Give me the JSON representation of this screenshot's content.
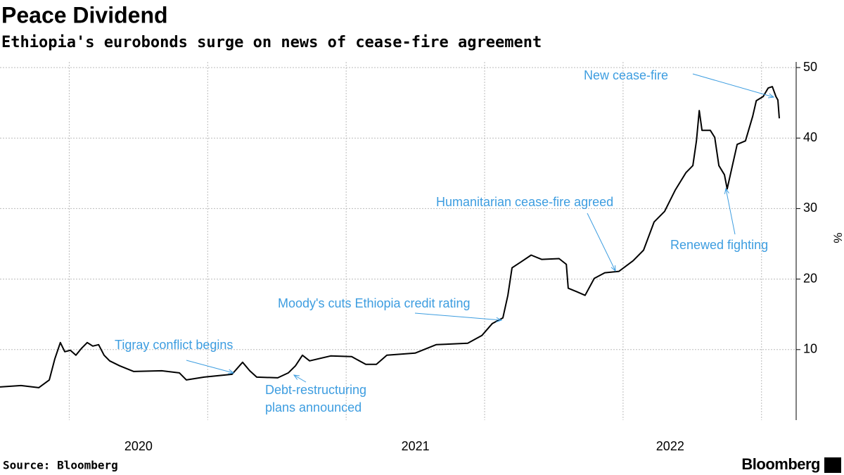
{
  "chart_data": {
    "type": "line",
    "title": "Peace Dividend",
    "subtitle": "Ethiopia's eurobonds surge on news of cease-fire agreement",
    "y_label": "%",
    "source": "Source: Bloomberg",
    "brand": "Bloomberg",
    "color": "#000000",
    "annotation_color": "#3d9de0",
    "x": [
      2020.0,
      2020.076,
      2020.14,
      2020.178,
      2020.198,
      2020.218,
      2020.234,
      2020.254,
      2020.274,
      2020.295,
      2020.315,
      2020.335,
      2020.356,
      2020.376,
      2020.396,
      2020.432,
      2020.483,
      2020.584,
      2020.648,
      2020.673,
      2020.737,
      2020.838,
      2020.876,
      2020.902,
      2020.927,
      2021.003,
      2021.041,
      2021.067,
      2021.092,
      2021.118,
      2021.194,
      2021.27,
      2021.321,
      2021.359,
      2021.397,
      2021.499,
      2021.575,
      2021.689,
      2021.74,
      2021.778,
      2021.816,
      2021.834,
      2021.849,
      2021.88,
      2021.918,
      2021.956,
      2022.019,
      2022.045,
      2022.052,
      2022.083,
      2022.113,
      2022.146,
      2022.184,
      2022.235,
      2022.286,
      2022.324,
      2022.362,
      2022.4,
      2022.438,
      2022.477,
      2022.502,
      2022.515,
      2022.525,
      2022.535,
      2022.565,
      2022.581,
      2022.596,
      2022.616,
      2022.626,
      2022.642,
      2022.662,
      2022.692,
      2022.718,
      2022.731,
      2022.756,
      2022.774,
      2022.789,
      2022.802,
      2022.809,
      2022.814
    ],
    "values": [
      4.7,
      4.9,
      4.6,
      5.7,
      8.7,
      11.0,
      9.7,
      9.9,
      9.2,
      10.2,
      11.0,
      10.5,
      10.7,
      9.2,
      8.4,
      7.7,
      6.9,
      7.0,
      6.7,
      5.7,
      6.1,
      6.5,
      8.2,
      7.0,
      6.1,
      6.0,
      6.7,
      7.7,
      9.2,
      8.4,
      9.1,
      9.0,
      7.9,
      7.9,
      9.2,
      9.5,
      10.7,
      10.9,
      12.0,
      13.7,
      14.5,
      17.7,
      21.6,
      22.4,
      23.4,
      22.8,
      22.9,
      22.1,
      18.7,
      18.2,
      17.7,
      20.1,
      20.9,
      21.1,
      22.6,
      24.1,
      28.1,
      29.6,
      32.6,
      35.1,
      36.1,
      39.6,
      43.9,
      41.1,
      41.1,
      40.1,
      36.1,
      34.8,
      32.8,
      35.6,
      39.1,
      39.6,
      43.1,
      45.3,
      45.9,
      47.1,
      47.3,
      45.9,
      45.4,
      42.8
    ],
    "xlim": [
      2020.0,
      2022.87
    ],
    "xticks": [
      {
        "value": 2020.5,
        "label": "2020"
      },
      {
        "value": 2021.5,
        "label": "2021"
      },
      {
        "value": 2022.42,
        "label": "2022"
      }
    ],
    "xgrid": [
      2020.25,
      2020.75,
      2021.25,
      2021.75,
      2022.25,
      2022.75
    ],
    "ylim": [
      0,
      50.8
    ],
    "yticks": [
      10,
      20,
      30,
      40,
      50
    ],
    "grid": true,
    "annotations": [
      {
        "text": [
          "Tigray conflict begins"
        ]
      },
      {
        "text": [
          "Debt-restructuring",
          "plans announced"
        ]
      },
      {
        "text": [
          "Moody's cuts Ethiopia credit rating"
        ]
      },
      {
        "text": [
          "Humanitarian cease-fire agreed"
        ]
      },
      {
        "text": [
          "Renewed fighting"
        ]
      },
      {
        "text": [
          "New cease-fire"
        ]
      }
    ]
  }
}
